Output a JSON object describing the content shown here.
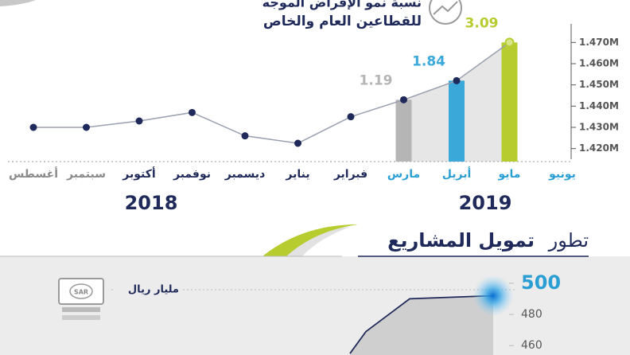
{
  "chart_data": [
    {
      "type": "line",
      "title": "نسبة نمو الإقراض الموجه",
      "subtitle": "للقطاعين العام والخاص",
      "categories": [
        "أغسطس",
        "سبتمبر",
        "أكتوبر",
        "نوفمبر",
        "ديسمبر",
        "يناير",
        "فبراير",
        "مارس",
        "أبريل",
        "مايو",
        "يونيو"
      ],
      "values": [
        1.43,
        1.43,
        1.433,
        1.437,
        1.426,
        1.4225,
        1.435,
        1.443,
        1.452,
        1.47,
        null
      ],
      "color": "#1f2a5a",
      "category_colors": [
        "#8a8a8a",
        "#8a8a8a",
        "#1f2a5a",
        "#1f2a5a",
        "#1f2a5a",
        "#1f2a5a",
        "#1f2a5a",
        "#2b9fd4",
        "#2b9fd4",
        "#2b9fd4",
        "#2b9fd4"
      ],
      "growth": {
        "values": [
          null,
          null,
          null,
          null,
          null,
          null,
          null,
          1.19,
          1.84,
          3.09,
          null
        ],
        "colors": [
          null,
          null,
          null,
          null,
          null,
          null,
          null,
          "#b5b5b5",
          "#3aa8d8",
          "#b7cc2e",
          null
        ]
      },
      "periods": [
        "2018",
        "2019"
      ],
      "period_colors": [
        "#1f2a5a",
        "#1f2a5a"
      ],
      "ylim": [
        1.415,
        1.475
      ],
      "yticks": [
        {
          "value": 1.42,
          "label": "1.420M"
        },
        {
          "value": 1.43,
          "label": "1.430M"
        },
        {
          "value": 1.44,
          "label": "1.440M"
        },
        {
          "value": 1.45,
          "label": "1.450M"
        },
        {
          "value": 1.46,
          "label": "1.460M"
        },
        {
          "value": 1.47,
          "label": "1.470M"
        }
      ],
      "grid": true
    },
    {
      "type": "area",
      "title_parts": [
        "تطور",
        "تمويل المشاريع"
      ],
      "unit_label": "مليار ريال",
      "icon_label": "SAR",
      "categories": [
        null,
        null,
        null,
        null
      ],
      "values": [
        455,
        469,
        490,
        492
      ],
      "color": "#1f2a5a",
      "ylim": [
        454,
        505
      ],
      "yticks": [
        460,
        480,
        500
      ],
      "highlight_tick": 2
    }
  ]
}
